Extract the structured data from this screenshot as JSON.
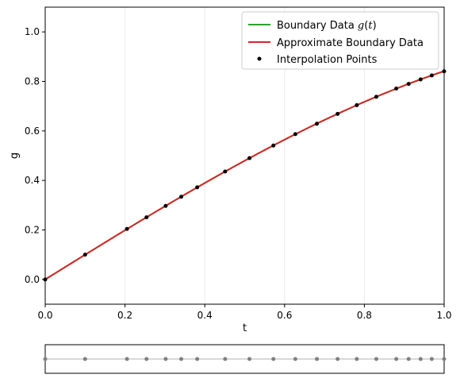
{
  "chart_data": [
    {
      "type": "line",
      "xlabel": "t",
      "ylabel": "g",
      "xlim": [
        0.0,
        1.0
      ],
      "ylim": [
        -0.1,
        1.1
      ],
      "xticks": [
        "0.0",
        "0.2",
        "0.4",
        "0.6",
        "0.8",
        "1.0"
      ],
      "xtick_values": [
        0.0,
        0.2,
        0.4,
        0.6,
        0.8,
        1.0
      ],
      "yticks": [
        "0.0",
        "0.2",
        "0.4",
        "0.6",
        "0.8",
        "1.0"
      ],
      "ytick_values": [
        0.0,
        0.2,
        0.4,
        0.6,
        0.8,
        1.0
      ],
      "grid": "vertical lines at x ticks",
      "legend_position": "top-right",
      "series": [
        {
          "name": "Boundary Data g(t)",
          "kind": "line",
          "color": "#2ca02c",
          "function": "sin(t)"
        },
        {
          "name": "Approximate Boundary Data",
          "kind": "line",
          "color": "#d62728",
          "function": "sin(t)"
        },
        {
          "name": "Interpolation Points",
          "kind": "scatter",
          "color": "#000000",
          "x": [
            0.0,
            0.1,
            0.205,
            0.254,
            0.302,
            0.341,
            0.381,
            0.451,
            0.512,
            0.572,
            0.627,
            0.681,
            0.733,
            0.781,
            0.83,
            0.88,
            0.911,
            0.941,
            0.969,
            1.0
          ],
          "y": [
            0.0,
            0.1,
            0.204,
            0.251,
            0.297,
            0.334,
            0.372,
            0.436,
            0.49,
            0.541,
            0.587,
            0.629,
            0.669,
            0.704,
            0.738,
            0.771,
            0.79,
            0.808,
            0.824,
            0.841
          ]
        }
      ]
    },
    {
      "type": "scatter",
      "description_role": "strip",
      "xlim": [
        0.0,
        1.0
      ],
      "point_color": "#808080",
      "line_color": "#cccccc",
      "x": [
        0.0,
        0.1,
        0.205,
        0.254,
        0.302,
        0.341,
        0.381,
        0.451,
        0.512,
        0.572,
        0.627,
        0.681,
        0.733,
        0.781,
        0.83,
        0.88,
        0.911,
        0.941,
        0.969,
        1.0
      ]
    }
  ],
  "legend": {
    "boundary_prefix": "Boundary Data ",
    "boundary_math": "g",
    "boundary_paren_open": "(",
    "boundary_math_t": "t",
    "boundary_paren_close": ")",
    "approx": "Approximate Boundary Data",
    "points": "Interpolation Points"
  },
  "axes": {
    "xlabel": "t",
    "ylabel": "g"
  }
}
